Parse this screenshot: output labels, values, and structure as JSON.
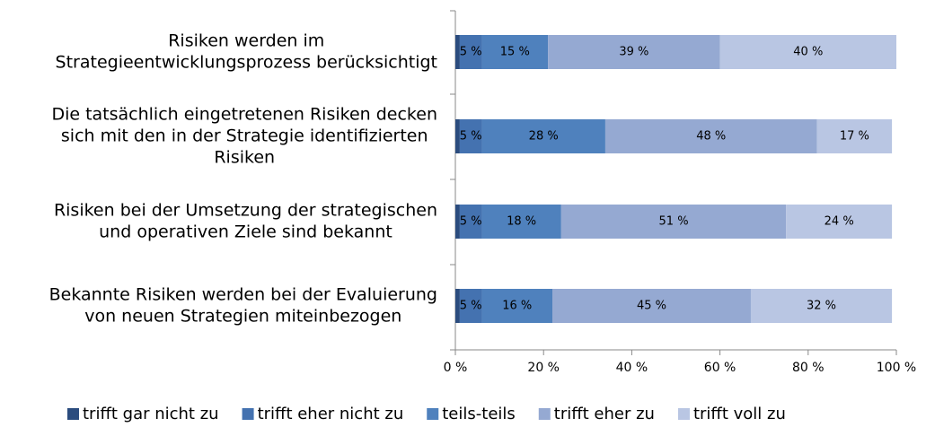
{
  "chart_data": {
    "type": "stacked_bar_horizontal",
    "categories": [
      [
        "Risiken werden im",
        "Strategieentwicklungsprozess berücksichtigt"
      ],
      [
        "Die tatsächlich eingetretenen Risiken decken",
        "sich mit den in der Strategie identifizierten",
        "Risiken"
      ],
      [
        "Risiken bei der Umsetzung der strategischen",
        "und operativen Ziele sind bekannt"
      ],
      [
        "Bekannte Risiken werden bei der Evaluierung",
        "von neuen Strategien miteinbezogen"
      ]
    ],
    "series": [
      {
        "name": "trifft gar nicht zu",
        "color": "#2b4c7e",
        "values": [
          1,
          1,
          1,
          1
        ]
      },
      {
        "name": "trifft eher nicht zu",
        "color": "#4472b0",
        "values": [
          5,
          5,
          5,
          5
        ],
        "value_labels": [
          "5 %",
          "5 %",
          "5 %",
          "5 %"
        ]
      },
      {
        "name": "teils-teils",
        "color": "#4f81bd",
        "values": [
          15,
          28,
          18,
          16
        ],
        "value_labels": [
          "15 %",
          "28 %",
          "18 %",
          "16 %"
        ]
      },
      {
        "name": "trifft eher zu",
        "color": "#95a9d2",
        "values": [
          39,
          48,
          51,
          45
        ],
        "value_labels": [
          "39 %",
          "48 %",
          "51 %",
          "45 %"
        ]
      },
      {
        "name": "trifft voll zu",
        "color": "#b9c6e3",
        "values": [
          40,
          17,
          24,
          32
        ],
        "value_labels": [
          "40 %",
          "17 %",
          "24 %",
          "32 %"
        ]
      }
    ],
    "xlim": [
      0,
      100
    ],
    "xticks": [
      {
        "value": 0,
        "label": "0 %"
      },
      {
        "value": 20,
        "label": "20 %"
      },
      {
        "value": 40,
        "label": "40 %"
      },
      {
        "value": 60,
        "label": "60 %"
      },
      {
        "value": 80,
        "label": "80 %"
      },
      {
        "value": 100,
        "label": "100 %"
      }
    ],
    "legend": "bottom"
  }
}
